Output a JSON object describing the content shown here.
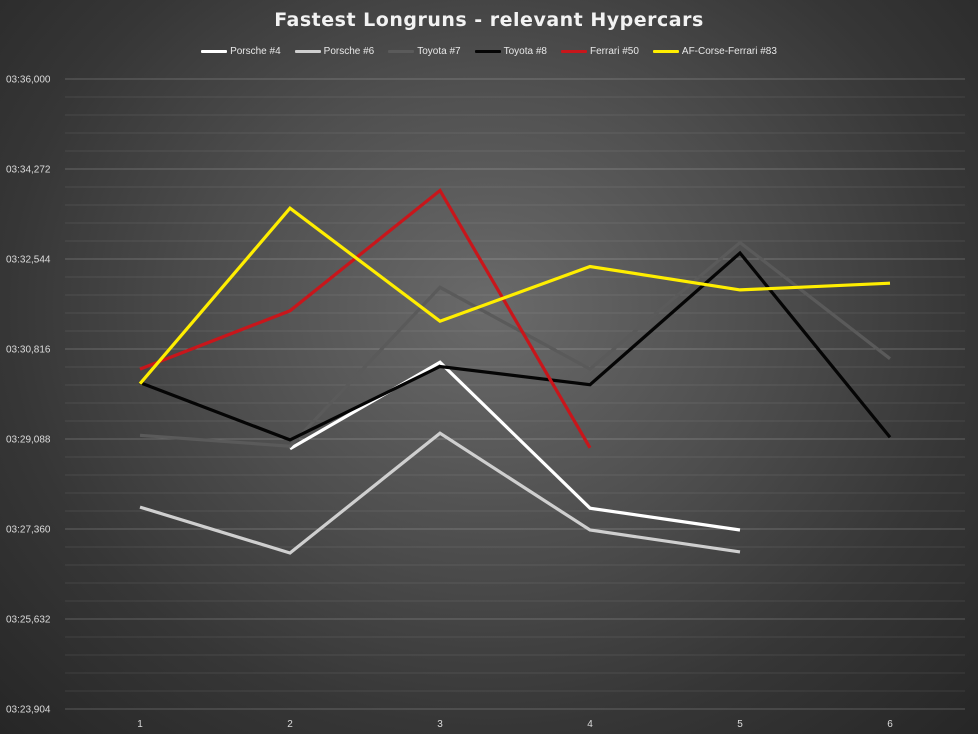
{
  "chart_data": {
    "type": "line",
    "title": "Fastest Longruns - relevant Hypercars",
    "xlabel": "",
    "ylabel": "",
    "x": [
      1,
      2,
      3,
      4,
      5,
      6
    ],
    "y_tick_labels": [
      "03:23,904",
      "03:25,632",
      "03:27,360",
      "03:29,088",
      "03:30,816",
      "03:32,544",
      "03:34,272",
      "03:36,000"
    ],
    "y_ticks_seconds": [
      203.904,
      205.632,
      207.36,
      209.088,
      210.816,
      212.544,
      214.272,
      216.0
    ],
    "ylim_seconds": [
      203.904,
      216.0
    ],
    "grid": true,
    "legend_position": "top",
    "series": [
      {
        "name": "Porsche #4",
        "color": "#ffffff",
        "values": [
          null,
          208.9,
          210.56,
          207.76,
          207.34,
          null
        ]
      },
      {
        "name": "Porsche #6",
        "color": "#cfcfcf",
        "values": [
          207.78,
          206.9,
          209.2,
          207.34,
          206.92,
          null
        ]
      },
      {
        "name": "Toyota #7",
        "color": "#5a5a5a",
        "values": [
          209.16,
          208.95,
          212.0,
          210.43,
          212.86,
          210.63
        ]
      },
      {
        "name": "Toyota #8",
        "color": "#050505",
        "values": [
          210.17,
          209.07,
          210.48,
          210.13,
          212.66,
          209.12
        ]
      },
      {
        "name": "Ferrari #50",
        "color": "#c8161b",
        "values": [
          210.43,
          211.55,
          213.86,
          208.92,
          null,
          null
        ]
      },
      {
        "name": "AF-Corse-Ferrari #83",
        "color": "#ffee00",
        "values": [
          210.15,
          213.52,
          211.35,
          212.4,
          211.95,
          212.08
        ]
      }
    ]
  }
}
